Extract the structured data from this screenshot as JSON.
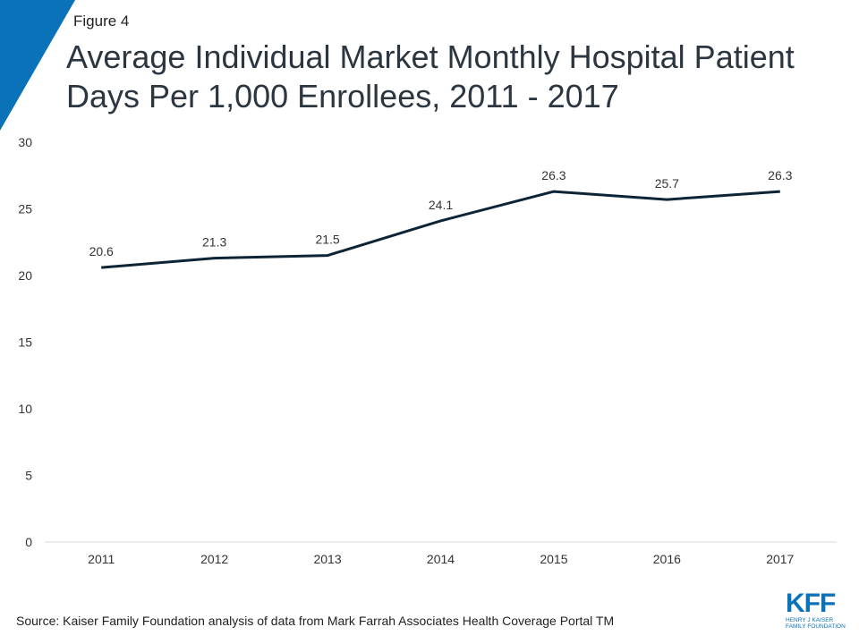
{
  "figure_label": "Figure 4",
  "colors": {
    "accent": "#0a72b8",
    "line": "#0d2436",
    "axis": "#d9d9d9"
  },
  "source": "Source: Kaiser Family Foundation analysis of data from Mark Farrah Associates Health Coverage Portal TM",
  "logo": {
    "mark": "KFF",
    "subtitle_line1": "HENRY J KAISER",
    "subtitle_line2": "FAMILY FOUNDATION"
  },
  "chart_data": {
    "type": "line",
    "title": "Average Individual Market Monthly Hospital Patient Days Per 1,000 Enrollees, 2011 - 2017",
    "categories": [
      "2011",
      "2012",
      "2013",
      "2014",
      "2015",
      "2016",
      "2017"
    ],
    "series": [
      {
        "values": [
          20.6,
          21.3,
          21.5,
          24.1,
          26.3,
          25.7,
          26.3
        ]
      }
    ],
    "data_labels": [
      "20.6",
      "21.3",
      "21.5",
      "24.1",
      "26.3",
      "25.7",
      "26.3"
    ],
    "ylim": [
      0,
      30
    ],
    "yticks": [
      0,
      5,
      10,
      15,
      20,
      25,
      30
    ],
    "xlabel": "",
    "ylabel": "",
    "grid": false,
    "legend": "none"
  }
}
